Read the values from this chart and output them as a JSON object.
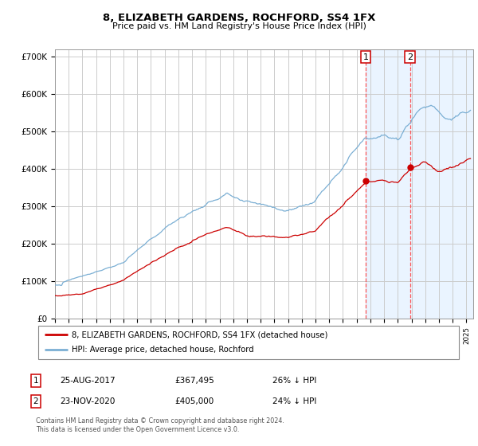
{
  "title": "8, ELIZABETH GARDENS, ROCHFORD, SS4 1FX",
  "subtitle": "Price paid vs. HM Land Registry's House Price Index (HPI)",
  "background_color": "#ffffff",
  "plot_bg_color": "#ffffff",
  "grid_color": "#cccccc",
  "hpi_color": "#7bafd4",
  "price_color": "#cc0000",
  "highlight_bg": "#ddeeff",
  "sale1_date_num": 2017.65,
  "sale1_price": 367495,
  "sale2_date_num": 2020.9,
  "sale2_price": 405000,
  "legend_entries": [
    "8, ELIZABETH GARDENS, ROCHFORD, SS4 1FX (detached house)",
    "HPI: Average price, detached house, Rochford"
  ],
  "table_rows": [
    [
      "1",
      "25-AUG-2017",
      "£367,495",
      "26% ↓ HPI"
    ],
    [
      "2",
      "23-NOV-2020",
      "£405,000",
      "24% ↓ HPI"
    ]
  ],
  "footer": "Contains HM Land Registry data © Crown copyright and database right 2024.\nThis data is licensed under the Open Government Licence v3.0.",
  "ylim": [
    0,
    720000
  ],
  "xlim_start": 1995.0,
  "xlim_end": 2025.5,
  "yticks": [
    0,
    100000,
    200000,
    300000,
    400000,
    500000,
    600000,
    700000
  ],
  "ytick_labels": [
    "£0",
    "£100K",
    "£200K",
    "£300K",
    "£400K",
    "£500K",
    "£600K",
    "£700K"
  ]
}
